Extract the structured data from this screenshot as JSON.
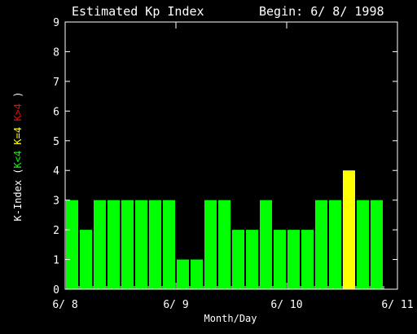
{
  "chart_data": {
    "type": "bar",
    "title": "Estimated Kp Index",
    "begin_label": "Begin: 6/ 8/ 1998",
    "xlabel": "Month/Day",
    "ylabel_parts": [
      {
        "text": "K-Index (",
        "color": "#ffffff"
      },
      {
        "text": "K<4",
        "color": "#00ff00"
      },
      {
        "text": " ",
        "color": "#ffffff"
      },
      {
        "text": "K=4",
        "color": "#ffff00"
      },
      {
        "text": " ",
        "color": "#ffffff"
      },
      {
        "text": "K>4",
        "color": "#ff0000"
      },
      {
        "text": " )",
        "color": "#ffffff"
      }
    ],
    "ylim": [
      0,
      9
    ],
    "yticks": [
      0,
      1,
      2,
      3,
      4,
      5,
      6,
      7,
      8,
      9
    ],
    "xticks": [
      "6/ 8",
      "6/ 9",
      "6/ 10",
      "6/ 11"
    ],
    "bins_per_day": 8,
    "values": [
      3,
      2,
      3,
      3,
      3,
      3,
      3,
      3,
      1,
      1,
      3,
      3,
      2,
      2,
      3,
      2,
      2,
      2,
      3,
      3,
      4,
      3,
      3
    ],
    "colors": {
      "low": "#00ff00",
      "equal": "#ffff00",
      "high": "#ff0000",
      "axis": "#ffffff",
      "background": "#000000"
    }
  }
}
